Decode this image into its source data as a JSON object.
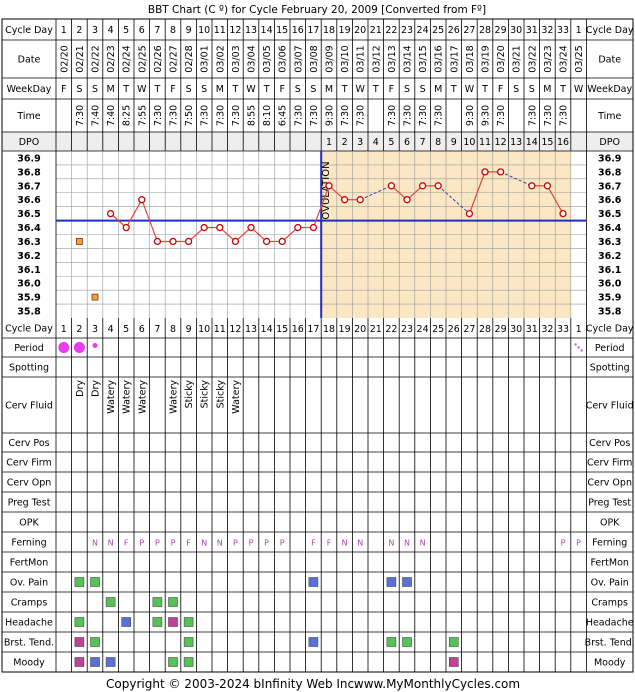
{
  "header": {
    "title": "BBT Chart (C º) for Cycle February 20, 2009  [Converted from Fº]"
  },
  "footer": {
    "copyright": "Copyright © 2003-2024 bInfinity Web Inc.",
    "site": "www.MyMonthlyCycles.com"
  },
  "labels": {
    "cycle_day": "Cycle Day",
    "date": "Date",
    "weekday": "WeekDay",
    "time": "Time",
    "dpo": "DPO",
    "period": "Period",
    "spotting": "Spotting",
    "cerv_fluid": "Cerv Fluid",
    "cerv_pos": "Cerv Pos",
    "cerv_firm": "Cerv Firm",
    "cerv_opn": "Cerv Opn",
    "preg_test": "Preg Test",
    "opk": "OPK",
    "ferning": "Ferning",
    "fertmon": "FertMon",
    "ov_pain": "Ov. Pain",
    "cramps": "Cramps",
    "headache": "Headache",
    "brst_tend": "Brst. Tend.",
    "moody": "Moody",
    "ovulation": "OVULATION"
  },
  "colors": {
    "grid": "#000000",
    "line": "#e0453a",
    "dot": "#cc0000",
    "coverline": "#1f2fbf",
    "luteal_bg": "#fbe7c4",
    "period": "#e83cf0",
    "spotting": "#d060d0",
    "ferning_text": "#b040b0",
    "green": "#55c255",
    "blue": "#5a6fd8",
    "magenta": "#c0409a",
    "orange": "#f0a040"
  },
  "chart_data": {
    "type": "line",
    "title": "BBT Chart (C º) for Cycle February 20, 2009  [Converted from Fº]",
    "ylim": [
      35.8,
      36.9
    ],
    "yticks": [
      "36.9",
      "36.8",
      "36.7",
      "36.6",
      "36.5",
      "36.4",
      "36.3",
      "36.2",
      "36.1",
      "36.0",
      "35.9",
      "35.8"
    ],
    "coverline": 36.45,
    "ovulation_day": 17,
    "columns": [
      {
        "cd": "1",
        "date": "02/20",
        "wd": "F",
        "time": "",
        "dpo": ""
      },
      {
        "cd": "2",
        "date": "02/21",
        "wd": "S",
        "time": "7:30",
        "dpo": ""
      },
      {
        "cd": "3",
        "date": "02/22",
        "wd": "S",
        "time": "7:40",
        "dpo": ""
      },
      {
        "cd": "4",
        "date": "02/23",
        "wd": "M",
        "time": "7:40",
        "dpo": ""
      },
      {
        "cd": "5",
        "date": "02/24",
        "wd": "T",
        "time": "8:25",
        "dpo": ""
      },
      {
        "cd": "6",
        "date": "02/25",
        "wd": "W",
        "time": "7:55",
        "dpo": ""
      },
      {
        "cd": "7",
        "date": "02/26",
        "wd": "T",
        "time": "7:30",
        "dpo": ""
      },
      {
        "cd": "8",
        "date": "02/27",
        "wd": "F",
        "time": "7:30",
        "dpo": ""
      },
      {
        "cd": "9",
        "date": "02/28",
        "wd": "S",
        "time": "7:50",
        "dpo": ""
      },
      {
        "cd": "10",
        "date": "03/01",
        "wd": "S",
        "time": "7:30",
        "dpo": ""
      },
      {
        "cd": "11",
        "date": "03/02",
        "wd": "M",
        "time": "7:30",
        "dpo": ""
      },
      {
        "cd": "12",
        "date": "03/03",
        "wd": "T",
        "time": "7:30",
        "dpo": ""
      },
      {
        "cd": "13",
        "date": "03/04",
        "wd": "W",
        "time": "8:55",
        "dpo": ""
      },
      {
        "cd": "14",
        "date": "03/05",
        "wd": "T",
        "time": "8:10",
        "dpo": ""
      },
      {
        "cd": "15",
        "date": "03/06",
        "wd": "F",
        "time": "6:45",
        "dpo": ""
      },
      {
        "cd": "16",
        "date": "03/07",
        "wd": "S",
        "time": "7:30",
        "dpo": ""
      },
      {
        "cd": "17",
        "date": "03/08",
        "wd": "S",
        "time": "7:30",
        "dpo": ""
      },
      {
        "cd": "18",
        "date": "03/09",
        "wd": "M",
        "time": "9:30",
        "dpo": "1"
      },
      {
        "cd": "19",
        "date": "03/10",
        "wd": "T",
        "time": "7:30",
        "dpo": "2"
      },
      {
        "cd": "20",
        "date": "03/11",
        "wd": "W",
        "time": "7:30",
        "dpo": "3"
      },
      {
        "cd": "21",
        "date": "03/12",
        "wd": "T",
        "time": "",
        "dpo": "4"
      },
      {
        "cd": "22",
        "date": "03/13",
        "wd": "F",
        "time": "7:30",
        "dpo": "5"
      },
      {
        "cd": "23",
        "date": "03/14",
        "wd": "S",
        "time": "7:30",
        "dpo": "6"
      },
      {
        "cd": "24",
        "date": "03/15",
        "wd": "S",
        "time": "7:30",
        "dpo": "7"
      },
      {
        "cd": "25",
        "date": "03/16",
        "wd": "M",
        "time": "7:30",
        "dpo": "8"
      },
      {
        "cd": "26",
        "date": "03/17",
        "wd": "T",
        "time": "",
        "dpo": "9"
      },
      {
        "cd": "27",
        "date": "03/18",
        "wd": "W",
        "time": "9:30",
        "dpo": "10"
      },
      {
        "cd": "28",
        "date": "03/19",
        "wd": "T",
        "time": "9:30",
        "dpo": "11"
      },
      {
        "cd": "29",
        "date": "03/20",
        "wd": "F",
        "time": "7:30",
        "dpo": "12"
      },
      {
        "cd": "30",
        "date": "03/21",
        "wd": "S",
        "time": "",
        "dpo": "13"
      },
      {
        "cd": "31",
        "date": "03/22",
        "wd": "S",
        "time": "7:30",
        "dpo": "14"
      },
      {
        "cd": "32",
        "date": "03/23",
        "wd": "M",
        "time": "7:30",
        "dpo": "15"
      },
      {
        "cd": "33",
        "date": "03/24",
        "wd": "T",
        "time": "7:30",
        "dpo": "16"
      },
      {
        "cd": "1",
        "date": "03/25",
        "wd": "W",
        "time": "",
        "dpo": ""
      }
    ],
    "temps": [
      null,
      null,
      null,
      36.5,
      36.4,
      36.6,
      36.3,
      36.3,
      36.3,
      36.4,
      36.4,
      36.3,
      36.4,
      36.3,
      36.3,
      36.4,
      36.4,
      36.7,
      36.6,
      36.6,
      null,
      36.7,
      36.6,
      36.7,
      36.7,
      null,
      36.5,
      36.8,
      36.8,
      null,
      36.7,
      36.7,
      36.5,
      null
    ],
    "discarded": [
      {
        "day": 2,
        "temp": 36.3
      },
      {
        "day": 3,
        "temp": 35.9
      }
    ],
    "period": [
      2,
      2,
      1,
      0,
      0,
      0,
      0,
      0,
      0,
      0,
      0,
      0,
      0,
      0,
      0,
      0,
      0,
      0,
      0,
      0,
      0,
      0,
      0,
      0,
      0,
      0,
      0,
      0,
      0,
      0,
      0,
      0,
      0,
      3
    ],
    "cerv_fluid": [
      "",
      "Dry",
      "Dry",
      "Watery",
      "Watery",
      "Watery",
      "",
      "Watery",
      "Sticky",
      "Sticky",
      "Sticky",
      "Watery",
      "",
      "",
      "",
      "",
      "",
      "",
      "",
      "",
      "",
      "",
      "",
      "",
      "",
      "",
      "",
      "",
      "",
      "",
      "",
      "",
      "",
      ""
    ],
    "ferning": [
      "",
      "",
      "N",
      "N",
      "F",
      "P",
      "P",
      "P",
      "F",
      "N",
      "N",
      "P",
      "P",
      "P",
      "P",
      "",
      "F",
      "F",
      "N",
      "N",
      "",
      "N",
      "N",
      "N",
      "",
      "",
      "",
      "",
      "",
      "",
      "",
      "",
      "P",
      "P"
    ],
    "ov_pain": [
      "",
      "g",
      "g",
      "",
      "",
      "",
      "",
      "",
      "",
      "",
      "",
      "",
      "",
      "",
      "",
      "",
      "b",
      "",
      "",
      "",
      "",
      "b",
      "b",
      "",
      "",
      "",
      "",
      "",
      "",
      "",
      "",
      "",
      "",
      ""
    ],
    "cramps": [
      "",
      "",
      "",
      "g",
      "",
      "",
      "g",
      "g",
      "",
      "",
      "",
      "",
      "",
      "",
      "",
      "",
      "",
      "",
      "",
      "",
      "",
      "",
      "",
      "",
      "",
      "",
      "",
      "",
      "",
      "",
      "",
      "",
      "",
      ""
    ],
    "headache": [
      "",
      "g",
      "",
      "",
      "b",
      "",
      "g",
      "m",
      "g",
      "",
      "",
      "",
      "",
      "",
      "",
      "",
      "",
      "",
      "",
      "",
      "",
      "",
      "",
      "",
      "",
      "",
      "",
      "",
      "",
      "",
      "",
      "",
      "",
      ""
    ],
    "brst_tend": [
      "",
      "m",
      "g",
      "",
      "",
      "",
      "",
      "",
      "g",
      "",
      "",
      "",
      "",
      "",
      "",
      "",
      "b",
      "",
      "",
      "",
      "",
      "g",
      "g",
      "",
      "",
      "g",
      "",
      "",
      "",
      "",
      "",
      "",
      "",
      ""
    ],
    "moody": [
      "",
      "m",
      "b",
      "b",
      "",
      "",
      "",
      "g",
      "g",
      "",
      "",
      "",
      "",
      "",
      "",
      "",
      "",
      "",
      "",
      "",
      "",
      "",
      "",
      "",
      "",
      "m",
      "",
      "",
      "",
      "",
      "",
      "",
      "",
      ""
    ]
  }
}
